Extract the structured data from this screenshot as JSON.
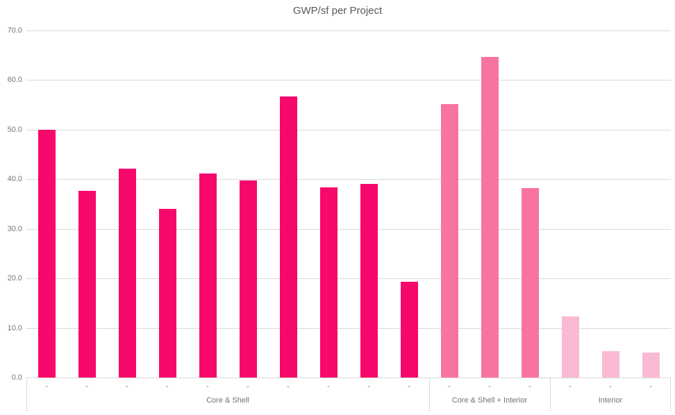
{
  "title": "GWP/sf per Project",
  "chart_data": {
    "type": "bar",
    "title": "GWP/sf per Project",
    "xlabel": "",
    "ylabel": "",
    "ylim": [
      0,
      70
    ],
    "ytick_interval": 10,
    "ytick_labels": [
      "0.0",
      "10.0",
      "20.0",
      "30.0",
      "40.0",
      "50.0",
      "60.0",
      "70.0"
    ],
    "grid": true,
    "legend": "none",
    "groups": [
      {
        "label": "Core & Shell",
        "color": "#f7086b",
        "tick_labels": [
          "-",
          "-",
          "-",
          "-",
          "-",
          "-",
          "-",
          "-",
          "-",
          "-"
        ],
        "values": [
          50.0,
          37.6,
          42.2,
          34.0,
          41.1,
          39.7,
          56.7,
          38.3,
          39.1,
          19.3
        ]
      },
      {
        "label": "Core & Shell + Interior",
        "color": "#f8749f",
        "tick_labels": [
          "-",
          "-",
          "-"
        ],
        "values": [
          55.2,
          64.7,
          38.2
        ]
      },
      {
        "label": "Interior",
        "color": "#fbbad3",
        "tick_labels": [
          "-",
          "-",
          "-"
        ],
        "values": [
          12.3,
          5.3,
          5.1
        ]
      }
    ]
  },
  "colors": {
    "gridline": "#d9d9d9",
    "axis_text": "#737373",
    "title_text": "#595959",
    "background": "#ffffff"
  }
}
